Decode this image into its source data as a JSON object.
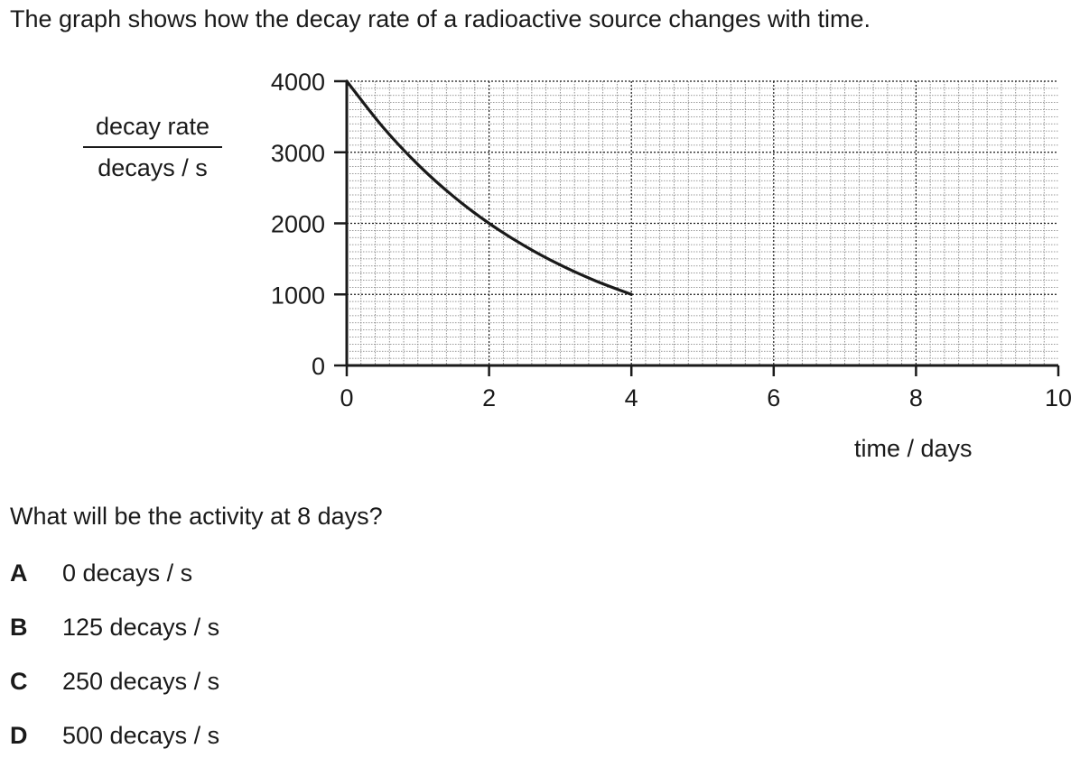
{
  "question_intro": "The graph shows how the decay rate of a radioactive source changes with time.",
  "question": "What will be the activity at 8 days?",
  "options": [
    {
      "letter": "A",
      "text": "0 decays / s"
    },
    {
      "letter": "B",
      "text": "125 decays / s"
    },
    {
      "letter": "C",
      "text": "250 decays / s"
    },
    {
      "letter": "D",
      "text": "500 decays / s"
    }
  ],
  "chart_data": {
    "type": "line",
    "title": "",
    "xlabel": "time / days",
    "ylabel_num": "decay rate",
    "ylabel_den": "decays / s",
    "xlim": [
      0,
      10
    ],
    "ylim": [
      0,
      4000
    ],
    "x_ticks": [
      0,
      2,
      4,
      6,
      8,
      10
    ],
    "y_ticks": [
      0,
      1000,
      2000,
      3000,
      4000
    ],
    "x_tick_labels": [
      "0",
      "2",
      "4",
      "6",
      "8",
      "10"
    ],
    "y_tick_labels": [
      "0",
      "1000",
      "2000",
      "3000",
      "4000"
    ],
    "grid": true,
    "series": [
      {
        "x": [
          0,
          0.5,
          1,
          1.5,
          2,
          2.5,
          3,
          3.5,
          4
        ],
        "y": [
          4000,
          3364,
          2828,
          2378,
          2000,
          1682,
          1414,
          1189,
          1000
        ]
      }
    ],
    "line_color": "#1a1a1a"
  }
}
